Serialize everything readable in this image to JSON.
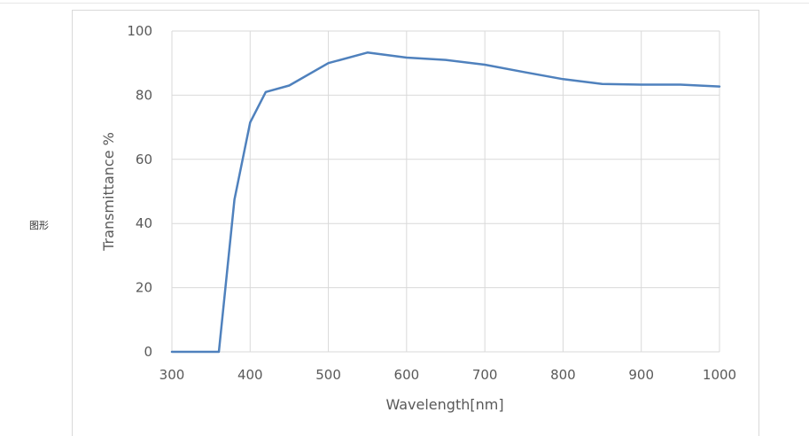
{
  "side_label": "图形",
  "chart_data": {
    "type": "line",
    "title": "",
    "xlabel": "Wavelength[nm]",
    "ylabel": "Transmittance %",
    "xlim": [
      300,
      1000
    ],
    "ylim": [
      0,
      100
    ],
    "x_ticks": [
      300,
      400,
      500,
      600,
      700,
      800,
      900,
      1000
    ],
    "y_ticks": [
      0,
      20,
      40,
      60,
      80,
      100
    ],
    "grid": true,
    "legend": "none",
    "series": [
      {
        "color": "#4f81bd",
        "x": [
          300,
          360,
          380,
          400,
          420,
          450,
          500,
          550,
          600,
          650,
          700,
          750,
          800,
          850,
          900,
          950,
          1000
        ],
        "y": [
          0,
          0,
          47.5,
          71.5,
          81,
          83,
          90,
          93.3,
          91.7,
          91,
          89.5,
          87.2,
          85,
          83.5,
          83.3,
          83.3,
          82.7
        ]
      }
    ]
  }
}
